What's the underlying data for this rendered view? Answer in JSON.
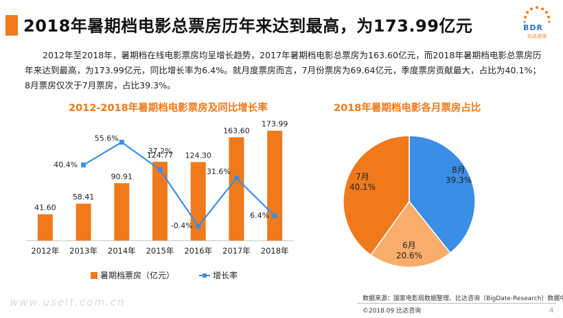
{
  "header": {
    "title": "2018年暑期档电影总票房历年来达到最高，为173.99亿元",
    "brand": "BDR",
    "brand_sub": "比达咨询",
    "accent": "#f07a1b",
    "brand_blue": "#2a74c9"
  },
  "summary": "2012年至2018年，暑期档在线电影票房均呈增长趋势，2017年暑期档电影总票房为163.60亿元，而2018年暑期档电影总票房历年来达到最高，为173.99亿元，同比增长率为6.4%。就月度票房而言，7月份票房为69.64亿元，季度票房贡献最大，占比为40.1%；8月票房仅次于7月票房，占比39.3%。",
  "chart_data": [
    {
      "type": "bar",
      "title": "2012-2018年暑期档电影票房及同比增长率",
      "categories": [
        "2012年",
        "2013年",
        "2014年",
        "2015年",
        "2016年",
        "2017年",
        "2018年"
      ],
      "series": [
        {
          "name": "暑期档票房（亿元）",
          "type": "bar",
          "color": "#f07a1b",
          "values": [
            41.6,
            58.41,
            90.91,
            124.77,
            124.3,
            163.6,
            173.99
          ],
          "labels": [
            "41.60",
            "58.41",
            "90.91",
            "124.77",
            "124.30",
            "163.60",
            "173.99"
          ]
        },
        {
          "name": "增长率",
          "type": "line",
          "color": "#3b8ee6",
          "values": [
            null,
            40.4,
            55.6,
            37.2,
            -0.4,
            31.6,
            6.4
          ],
          "labels": [
            "",
            "40.4%",
            "55.6%",
            "37.2%",
            "-0.4%",
            "31.6%",
            "6.4%"
          ]
        }
      ],
      "ylim": [
        0,
        190
      ],
      "y2lim": [
        -10,
        70
      ],
      "legend": "bottom"
    },
    {
      "type": "pie",
      "title": "2018年暑期档电影各月票房占比",
      "slices": [
        {
          "label": "8月",
          "value": 39.3,
          "text": "39.3%",
          "color": "#3b8ee6"
        },
        {
          "label": "6月",
          "value": 20.6,
          "text": "20.6%",
          "color": "#f9ad6a"
        },
        {
          "label": "7月",
          "value": 40.1,
          "text": "40.1%",
          "color": "#f07a1b"
        }
      ]
    }
  ],
  "footer": {
    "source": "数据来源：国家电影局数据整理、比达咨询（BigDate-Research）数据中心",
    "copyright": "©2018.09 比达咨询",
    "page": "4",
    "watermark": "www.useit.com.cn"
  }
}
